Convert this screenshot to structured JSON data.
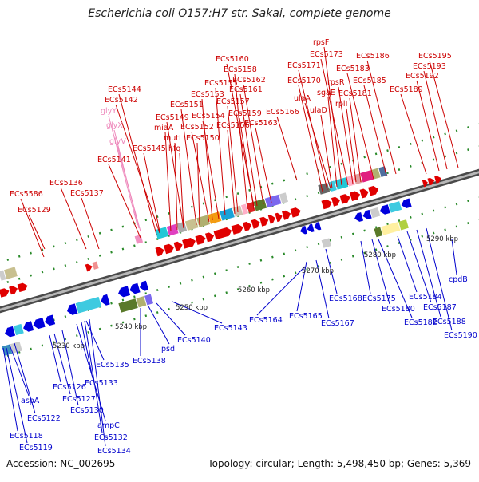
{
  "header": {
    "title": "Escherichia coli O157:H7 str. Sakai, complete genome"
  },
  "footer": {
    "accession": "Accession: NC_002695",
    "summary": "Topology: circular; Length: 5,498,450 bp; Genes: 5,369"
  },
  "colors": {
    "top_label": "#cc0000",
    "top_arrow": "#e00000",
    "bottom_label": "#0000cc",
    "bottom_arrow": "#0000dd",
    "trna_label": "#ee88bb",
    "backbone": "#777777",
    "tick": "#2a8a2a"
  },
  "scale": {
    "labels": [
      "5230 kbp",
      "5240 kbp",
      "5250 kbp",
      "5260 kbp",
      "5270 kbp",
      "5280 kbp",
      "5290 kbp"
    ]
  },
  "genes_top": [
    "ECs5586",
    "ECs5129",
    "ECs5136",
    "ECs5137",
    "ECs5141",
    "ECs5144",
    "ECs5142",
    "ECs5145",
    "hfq",
    "mutL",
    "miaA",
    "ECs5149",
    "ECs5150",
    "ECs5151",
    "ECs5152",
    "ECs5153",
    "ECs5154",
    "ECs5155",
    "ECs5156",
    "ECs5157",
    "ECs5158",
    "ECs5159",
    "ECs5160",
    "ECs5161",
    "ECs5162",
    "ECs5163",
    "ECs5166",
    "ECs5170",
    "ECs5171",
    "ulaA",
    "ulaD",
    "sgaE",
    "rpsF",
    "ECs5173",
    "rpsR",
    "rplI",
    "ECs5181",
    "ECs5183",
    "ECs5185",
    "ECs5186",
    "ECs5189",
    "ECs5192",
    "ECs5193",
    "ECs5195"
  ],
  "trnas": [
    "glyY",
    "glyX",
    "glyV"
  ],
  "genes_bottom": [
    "ECs5118",
    "ECs5119",
    "aspA",
    "ECs5122",
    "ECs5126",
    "ECs5127",
    "ECs5130",
    "ampC",
    "ECs5132",
    "ECs5133",
    "ECs5134",
    "ECs5135",
    "ECs5138",
    "psd",
    "ECs5140",
    "ECs5143",
    "ECs5164",
    "ECs5165",
    "ECs5167",
    "ECs5168",
    "ECs5175",
    "ECs5180",
    "ECs5182",
    "ECs5184",
    "ECs5187",
    "ECs5188",
    "ECs5190",
    "cpdB"
  ]
}
